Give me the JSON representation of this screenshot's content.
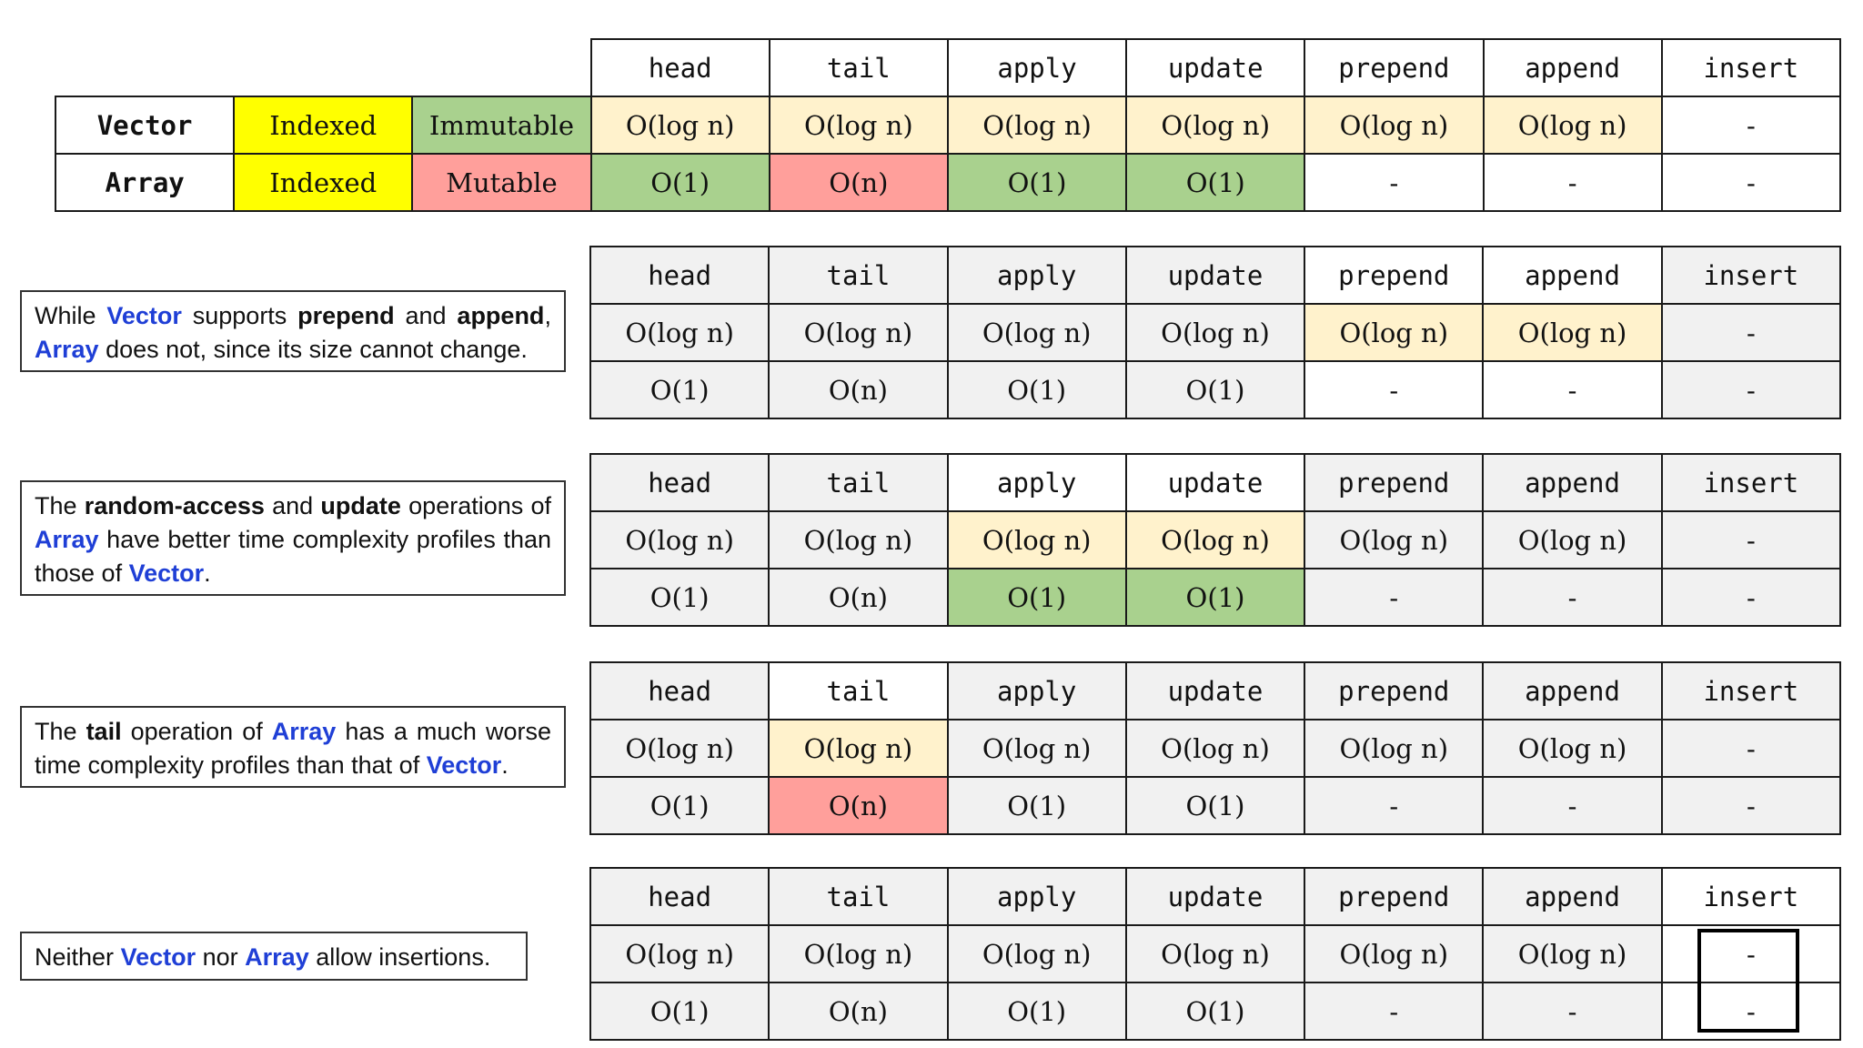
{
  "ops": [
    "head",
    "tail",
    "apply",
    "update",
    "prepend",
    "append",
    "insert"
  ],
  "main": {
    "vector": {
      "name": "Vector",
      "kind": "Indexed",
      "mutability": "Immutable",
      "cells": [
        "O(log n)",
        "O(log n)",
        "O(log n)",
        "O(log n)",
        "O(log n)",
        "O(log n)",
        "-"
      ]
    },
    "array": {
      "name": "Array",
      "kind": "Indexed",
      "mutability": "Mutable",
      "cells": [
        "O(1)",
        "O(n)",
        "O(1)",
        "O(1)",
        "-",
        "-",
        "-"
      ]
    }
  },
  "colors": {
    "yellow": "#ffff00",
    "green": "#a9d18e",
    "red": "#ff9f9b",
    "cream": "#fff2cc",
    "dim": "#f1f1f1",
    "blue": "#1f3fd6"
  },
  "notes": {
    "n1": {
      "while": "While",
      "vector": "Vector",
      "supports": "supports",
      "prepend": "prepend",
      "and": "and",
      "append": "append",
      "comma": ",",
      "array": "Array",
      "rest": "does not, since its size cannot change."
    },
    "n2": {
      "the": "The",
      "random": "random-access",
      "and": "and",
      "update": "update",
      "ops": "operations of",
      "array": "Array",
      "have": "have better time complexity profiles than those of",
      "vector": "Vector",
      "dot": "."
    },
    "n3": {
      "the": "The",
      "tail": "tail",
      "op": "operation of",
      "array": "Array",
      "rest": "has a much worse time complexity profiles than that of",
      "vector": "Vector",
      "dot": "."
    },
    "n4": {
      "neither": "Neither",
      "vector": "Vector",
      "nor": "nor",
      "array": "Array",
      "rest": "allow insertions."
    }
  }
}
